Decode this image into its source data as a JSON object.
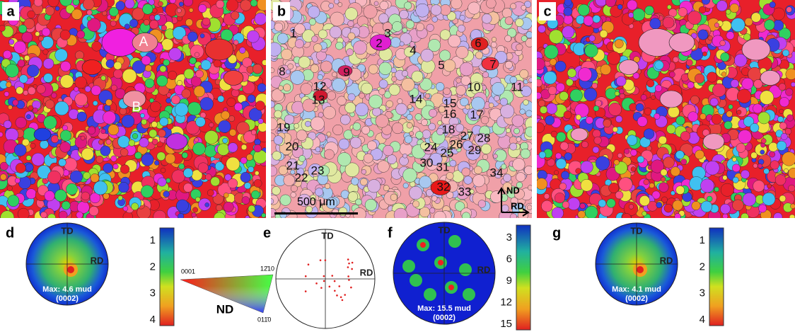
{
  "panels": {
    "a": {
      "letter": "a",
      "labels": [
        "A",
        "B"
      ]
    },
    "b": {
      "letter": "b",
      "grain_labels": [
        "1",
        "2",
        "3",
        "4",
        "5",
        "6",
        "7",
        "8",
        "9",
        "10",
        "11",
        "12",
        "13",
        "14",
        "15",
        "16",
        "17",
        "18",
        "19",
        "20",
        "21",
        "22",
        "23",
        "24",
        "25",
        "26",
        "27",
        "28",
        "29",
        "30",
        "31",
        "32",
        "33",
        "34"
      ],
      "scale_bar": "500 μm",
      "axes": [
        "ND",
        "RD"
      ]
    },
    "c": {
      "letter": "c"
    },
    "d": {
      "letter": "d",
      "pole_labels": [
        "TD",
        "RD"
      ],
      "max": "Max: 4.6 mud",
      "plane": "(0002)",
      "colorbar": [
        "1",
        "2",
        "3",
        "4"
      ]
    },
    "ipf": {
      "corners": [
        "0001",
        "12̄10",
        "011̄0"
      ],
      "axis": "ND"
    },
    "e": {
      "letter": "e",
      "pole_labels": [
        "TD",
        "RD"
      ]
    },
    "f": {
      "letter": "f",
      "pole_labels": [
        "TD",
        "RD"
      ],
      "max": "Max: 15.5 mud",
      "plane": "(0002)",
      "colorbar": [
        "3",
        "6",
        "9",
        "12",
        "15"
      ]
    },
    "g": {
      "letter": "g",
      "pole_labels": [
        "TD",
        "RD"
      ],
      "max": "Max: 4.1 mud",
      "plane": "(0002)",
      "colorbar": [
        "1",
        "2",
        "3",
        "4"
      ]
    }
  }
}
